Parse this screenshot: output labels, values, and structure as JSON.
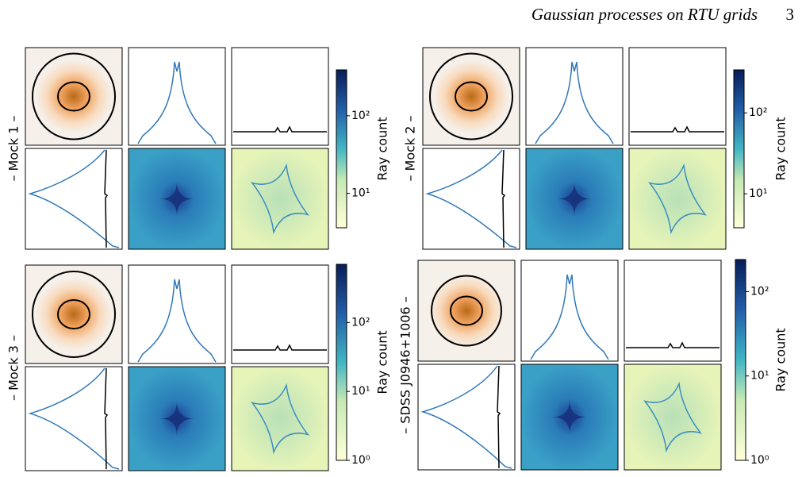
{
  "header": {
    "title": "Gaussian processes on RTU grids",
    "page": "3"
  },
  "panels": [
    {
      "label": "– Mock 1 –",
      "colorbar": {
        "label": "Ray count",
        "scale": "log",
        "lim": [
          3.6,
          390
        ],
        "ticks": [
          {
            "value": 10,
            "label": "10¹"
          },
          {
            "value": 100,
            "label": "10²"
          }
        ]
      }
    },
    {
      "label": "– Mock 2 –",
      "colorbar": {
        "label": "Ray count",
        "scale": "log",
        "lim": [
          3.8,
          340
        ],
        "ticks": [
          {
            "value": 10,
            "label": "10¹"
          },
          {
            "value": 100,
            "label": "10²"
          }
        ]
      }
    },
    {
      "label": "– Mock 3 –",
      "colorbar": {
        "label": "Ray count",
        "scale": "log",
        "lim": [
          1,
          700
        ],
        "ticks": [
          {
            "value": 1,
            "label": "10⁰"
          },
          {
            "value": 10,
            "label": "10¹"
          },
          {
            "value": 100,
            "label": "10²"
          }
        ]
      }
    },
    {
      "label": "– SDSS J0946+1006 –",
      "colorbar": {
        "label": "Ray count",
        "scale": "log",
        "lim": [
          1,
          240
        ],
        "ticks": [
          {
            "value": 1,
            "label": "10⁰"
          },
          {
            "value": 10,
            "label": "10¹"
          },
          {
            "value": 100,
            "label": "10²"
          }
        ]
      }
    }
  ]
}
